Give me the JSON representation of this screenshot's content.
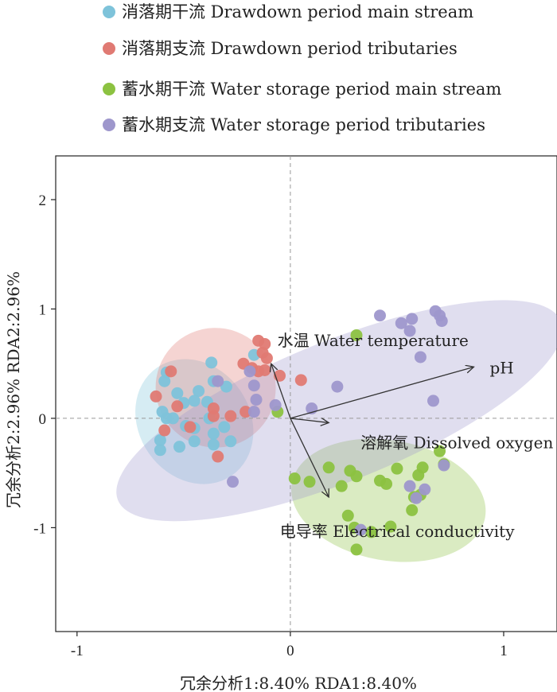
{
  "chart_data": {
    "type": "scatter",
    "xlabel": "冗余分析1:8.40% RDA1:8.40%",
    "ylabel": "冗余分析2:2.96% RDA2:2.96%",
    "xlim": [
      -1.1,
      1.25
    ],
    "ylim": [
      -1.95,
      2.4
    ],
    "x_ticks": [
      "-1",
      "0",
      "1"
    ],
    "x_tick_values": [
      -1,
      0,
      1
    ],
    "y_ticks": [
      "-1",
      "0",
      "1",
      "2"
    ],
    "y_tick_values": [
      -1,
      0,
      1,
      2
    ],
    "grid": false,
    "reference_lines": "dashed lines at x=0 and y=0",
    "legend_placement": "top",
    "series": [
      {
        "name": "消落期干流 Drawdown period main stream",
        "color": "#7ec3da",
        "ellipse": {
          "cx": -0.45,
          "cy": -0.03,
          "rx": 0.26,
          "ry": 0.6,
          "angle": 35
        },
        "points": [
          [
            -0.58,
            0.42
          ],
          [
            -0.59,
            0.34
          ],
          [
            -0.53,
            0.23
          ],
          [
            -0.43,
            0.25
          ],
          [
            -0.5,
            0.14
          ],
          [
            -0.45,
            0.16
          ],
          [
            -0.39,
            0.15
          ],
          [
            -0.37,
            0.51
          ],
          [
            -0.36,
            0.34
          ],
          [
            -0.3,
            0.29
          ],
          [
            -0.6,
            0.06
          ],
          [
            -0.58,
            0.0
          ],
          [
            -0.55,
            0.0
          ],
          [
            -0.49,
            -0.07
          ],
          [
            -0.45,
            -0.09
          ],
          [
            -0.38,
            0.0
          ],
          [
            -0.31,
            -0.08
          ],
          [
            -0.36,
            -0.14
          ],
          [
            -0.61,
            -0.2
          ],
          [
            -0.61,
            -0.29
          ],
          [
            -0.52,
            -0.26
          ],
          [
            -0.45,
            -0.21
          ],
          [
            -0.36,
            -0.24
          ],
          [
            -0.28,
            -0.21
          ],
          [
            -0.17,
            0.58
          ]
        ]
      },
      {
        "name": "消落期支流 Drawdown period tributaries",
        "color": "#e07a73",
        "ellipse": {
          "cx": -0.35,
          "cy": 0.28,
          "rx": 0.28,
          "ry": 0.55,
          "angle": 58
        },
        "points": [
          [
            -0.56,
            0.43
          ],
          [
            -0.63,
            0.2
          ],
          [
            -0.53,
            0.11
          ],
          [
            -0.36,
            0.09
          ],
          [
            -0.22,
            0.5
          ],
          [
            -0.18,
            0.46
          ],
          [
            -0.15,
            0.71
          ],
          [
            -0.12,
            0.68
          ],
          [
            -0.13,
            0.6
          ],
          [
            -0.12,
            0.44
          ],
          [
            -0.15,
            0.43
          ],
          [
            -0.11,
            0.55
          ],
          [
            -0.05,
            0.39
          ],
          [
            0.05,
            0.35
          ],
          [
            -0.36,
            0.02
          ],
          [
            -0.28,
            0.02
          ],
          [
            -0.21,
            0.06
          ],
          [
            -0.59,
            -0.11
          ],
          [
            -0.47,
            -0.08
          ],
          [
            -0.34,
            -0.35
          ]
        ]
      },
      {
        "name": "蓄水期干流 Water storage period main stream",
        "color": "#8cc241",
        "ellipse": {
          "cx": 0.46,
          "cy": -0.75,
          "rx": 0.46,
          "ry": 0.55,
          "angle": -10
        },
        "points": [
          [
            0.31,
            0.76
          ],
          [
            -0.06,
            0.06
          ],
          [
            0.02,
            -0.55
          ],
          [
            0.09,
            -0.58
          ],
          [
            0.18,
            -0.45
          ],
          [
            0.24,
            -0.62
          ],
          [
            0.28,
            -0.48
          ],
          [
            0.31,
            -0.53
          ],
          [
            0.27,
            -0.89
          ],
          [
            0.3,
            -1.0
          ],
          [
            0.38,
            -1.04
          ],
          [
            0.42,
            -0.57
          ],
          [
            0.45,
            -0.6
          ],
          [
            0.5,
            -0.46
          ],
          [
            0.47,
            -0.99
          ],
          [
            0.57,
            -0.84
          ],
          [
            0.58,
            -0.72
          ],
          [
            0.6,
            -0.52
          ],
          [
            0.61,
            -0.7
          ],
          [
            0.7,
            -0.3
          ],
          [
            0.72,
            -0.42
          ],
          [
            0.31,
            -1.2
          ],
          [
            0.62,
            -0.45
          ]
        ]
      },
      {
        "name": "蓄水期支流 Water storage period tributaries",
        "color": "#9e97cc",
        "ellipse": {
          "cx": 0.23,
          "cy": 0.07,
          "rx": 1.12,
          "ry": 0.64,
          "angle": 22
        },
        "points": [
          [
            0.42,
            0.94
          ],
          [
            0.52,
            0.87
          ],
          [
            0.57,
            0.91
          ],
          [
            0.56,
            0.8
          ],
          [
            0.68,
            0.98
          ],
          [
            0.7,
            0.94
          ],
          [
            0.71,
            0.89
          ],
          [
            0.61,
            0.56
          ],
          [
            0.67,
            0.16
          ],
          [
            0.22,
            0.29
          ],
          [
            0.1,
            0.09
          ],
          [
            -0.19,
            0.43
          ],
          [
            -0.17,
            0.3
          ],
          [
            -0.16,
            0.17
          ],
          [
            -0.07,
            0.12
          ],
          [
            -0.34,
            0.34
          ],
          [
            -0.27,
            -0.58
          ],
          [
            0.56,
            -0.62
          ],
          [
            0.59,
            -0.73
          ],
          [
            0.63,
            -0.65
          ],
          [
            0.72,
            -0.43
          ],
          [
            0.33,
            -1.02
          ],
          [
            -0.17,
            0.06
          ]
        ]
      }
    ],
    "vectors": [
      {
        "label": "水温 Water temperature",
        "x": -0.09,
        "y": 0.5
      },
      {
        "label": "pH",
        "x": 0.86,
        "y": 0.47
      },
      {
        "label": "溶解氧 Dissolved oxygen",
        "x": 0.18,
        "y": -0.04
      },
      {
        "label": "电导率 Electrical conductivity",
        "x": 0.18,
        "y": -0.72
      }
    ]
  }
}
